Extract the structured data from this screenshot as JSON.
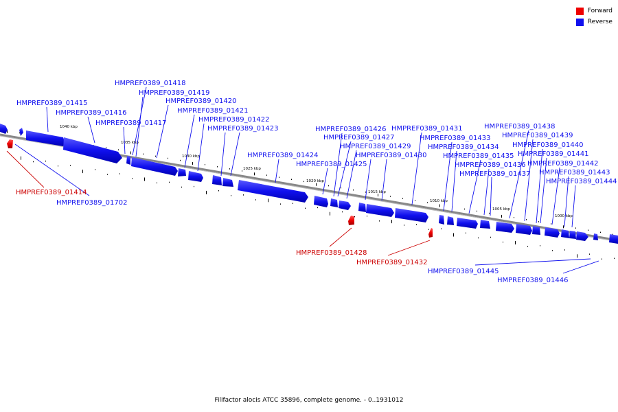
{
  "legend": {
    "forward_label": "Forward",
    "reverse_label": "Reverse",
    "forward_color": "#ee0000",
    "reverse_color": "#1010ee"
  },
  "caption": "Filifactor alocis ATCC 35896, complete genome. - 0..1931012",
  "scale_labels": [
    "1040 kbp",
    "1035 kbp",
    "1030 kbp",
    "1025 kbp",
    "1020 kbp",
    "1015 kbp",
    "1010 kbp",
    "1005 kbp",
    "1000 kbp"
  ],
  "genes_reverse": [
    "HMPREF0389_01415",
    "HMPREF0389_01416",
    "HMPREF0389_01417",
    "HMPREF0389_01418",
    "HMPREF0389_01419",
    "HMPREF0389_01420",
    "HMPREF0389_01421",
    "HMPREF0389_01422",
    "HMPREF0389_01423",
    "HMPREF0389_01424",
    "HMPREF0389_01425",
    "HMPREF0389_01426",
    "HMPREF0389_01427",
    "HMPREF0389_01429",
    "HMPREF0389_01430",
    "HMPREF0389_01431",
    "HMPREF0389_01433",
    "HMPREF0389_01434",
    "HMPREF0389_01435",
    "HMPREF0389_01436",
    "HMPREF0389_01437",
    "HMPREF0389_01438",
    "HMPREF0389_01439",
    "HMPREF0389_01440",
    "HMPREF0389_01441",
    "HMPREF0389_01442",
    "HMPREF0389_01443",
    "HMPREF0389_01444",
    "HMPREF0389_01702",
    "HMPREF0389_01445",
    "HMPREF0389_01446"
  ],
  "genes_forward": [
    "HMPREF0389_01414",
    "HMPREF0389_01428",
    "HMPREF0389_01432"
  ]
}
